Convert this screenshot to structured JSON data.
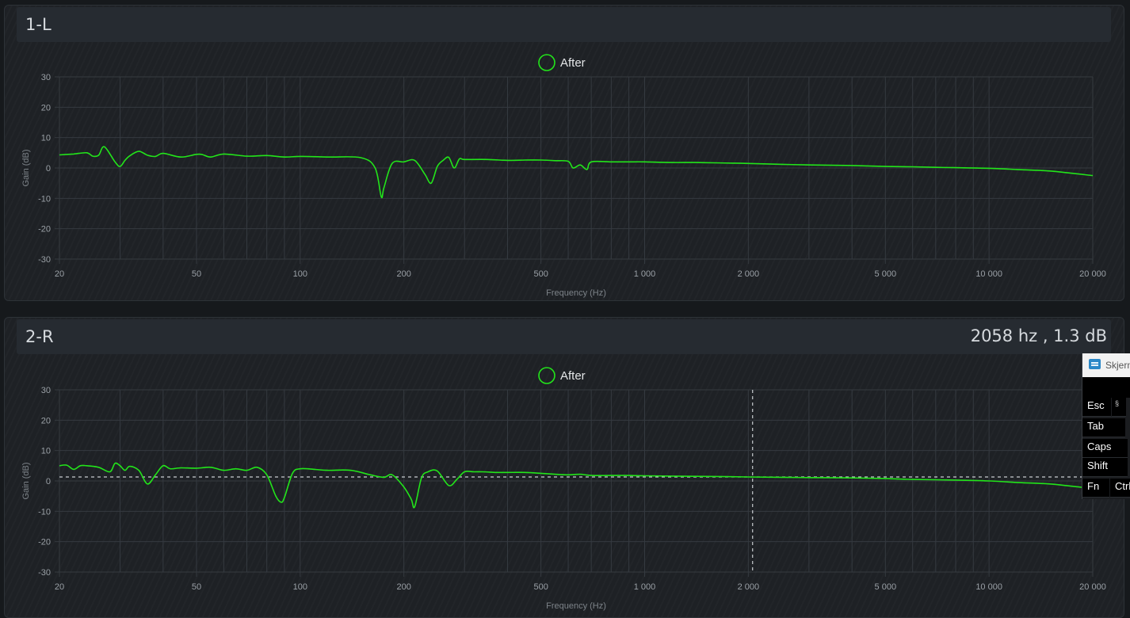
{
  "chart_data": [
    {
      "type": "line",
      "title": "1-L",
      "xlabel": "Frequency (Hz)",
      "ylabel": "Gain (dB)",
      "x_scale": "log",
      "xlim": [
        20,
        20000
      ],
      "ylim": [
        -30,
        30
      ],
      "x_tick_labels": [
        "20",
        "50",
        "100",
        "200",
        "500",
        "1 000",
        "2 000",
        "5 000",
        "10 000",
        "20 000"
      ],
      "y_tick_labels": [
        "30",
        "20",
        "10",
        "0",
        "-10",
        "-20",
        "-30"
      ],
      "grid": true,
      "legend": "top-center",
      "series": [
        {
          "name": "After",
          "color": "#22e51a",
          "x": [
            20,
            22,
            24,
            25,
            26,
            27,
            29,
            30,
            31,
            32,
            34,
            36,
            38,
            40,
            45,
            50,
            52,
            55,
            60,
            70,
            80,
            90,
            100,
            120,
            150,
            165,
            172,
            175,
            185,
            200,
            215,
            230,
            240,
            250,
            260,
            270,
            280,
            290,
            300,
            350,
            400,
            450,
            500,
            550,
            600,
            620,
            650,
            680,
            700,
            800,
            900,
            1000,
            1200,
            1400,
            1600,
            1800,
            2000,
            2500,
            3000,
            4000,
            5000,
            6000,
            7000,
            8000,
            10000,
            12000,
            15000,
            20000
          ],
          "y": [
            4.3,
            4.6,
            5.0,
            3.9,
            4.2,
            7.0,
            2.0,
            0.5,
            2.5,
            4.0,
            5.5,
            4.2,
            3.8,
            4.8,
            3.6,
            4.5,
            4.4,
            3.6,
            4.6,
            3.9,
            4.1,
            3.6,
            3.8,
            3.6,
            3.4,
            0.0,
            -9.5,
            -6.5,
            1.5,
            2.0,
            2.5,
            -2.0,
            -5.0,
            0.5,
            2.5,
            3.5,
            0.0,
            3.0,
            2.8,
            2.8,
            2.5,
            2.6,
            2.6,
            2.4,
            2.2,
            0.0,
            1.0,
            -0.5,
            2.0,
            2.0,
            2.0,
            2.0,
            1.8,
            1.8,
            1.7,
            1.6,
            1.5,
            1.2,
            1.0,
            0.8,
            0.5,
            0.4,
            0.2,
            0.1,
            -0.1,
            -0.5,
            -1.0,
            -2.5
          ]
        }
      ]
    },
    {
      "type": "line",
      "title": "2-R",
      "readout": "2058 hz , 1.3 dB",
      "cursor": {
        "x": 2058,
        "y": 1.3
      },
      "xlabel": "Frequency (Hz)",
      "ylabel": "Gain (dB)",
      "x_scale": "log",
      "xlim": [
        20,
        20000
      ],
      "ylim": [
        -30,
        30
      ],
      "x_tick_labels": [
        "20",
        "50",
        "100",
        "200",
        "500",
        "1 000",
        "2 000",
        "5 000",
        "10 000",
        "20 000"
      ],
      "y_tick_labels": [
        "30",
        "20",
        "10",
        "0",
        "-10",
        "-20",
        "-30"
      ],
      "grid": true,
      "legend": "top-center",
      "series": [
        {
          "name": "After",
          "color": "#22e51a",
          "x": [
            20,
            21,
            22,
            23,
            24,
            26,
            28,
            29,
            30,
            31,
            32,
            34,
            36,
            38,
            40,
            42,
            45,
            50,
            55,
            60,
            65,
            70,
            75,
            80,
            85,
            88,
            90,
            95,
            100,
            110,
            120,
            140,
            160,
            175,
            185,
            200,
            210,
            215,
            225,
            235,
            250,
            270,
            285,
            300,
            320,
            340,
            370,
            400,
            450,
            500,
            550,
            600,
            650,
            700,
            800,
            900,
            1000,
            1200,
            1500,
            2000,
            2500,
            3000,
            4000,
            5000,
            6000,
            8000,
            10000,
            12000,
            15000,
            20000
          ],
          "y": [
            5.0,
            5.2,
            3.8,
            5.0,
            5.0,
            4.5,
            3.0,
            5.8,
            5.0,
            3.5,
            4.8,
            3.5,
            -1.0,
            2.0,
            5.0,
            4.0,
            4.3,
            4.2,
            4.5,
            3.5,
            4.0,
            3.5,
            4.5,
            2.0,
            -5.0,
            -7.0,
            -5.5,
            2.5,
            4.0,
            3.8,
            3.5,
            3.5,
            2.0,
            1.2,
            2.0,
            -2.0,
            -6.0,
            -8.5,
            1.0,
            3.0,
            3.3,
            -1.5,
            0.5,
            3.0,
            3.0,
            3.0,
            2.8,
            2.8,
            2.8,
            2.5,
            2.2,
            2.0,
            2.2,
            1.8,
            1.8,
            1.8,
            1.7,
            1.6,
            1.5,
            1.3,
            1.2,
            1.1,
            1.0,
            0.8,
            0.5,
            0.3,
            0.0,
            -0.5,
            -1.0,
            -2.5
          ]
        }
      ]
    }
  ],
  "osk": {
    "title": "Skjerm",
    "keys": [
      "Esc",
      "§",
      "Tab",
      "Caps",
      "Shift",
      "Fn",
      "Ctrl"
    ]
  }
}
